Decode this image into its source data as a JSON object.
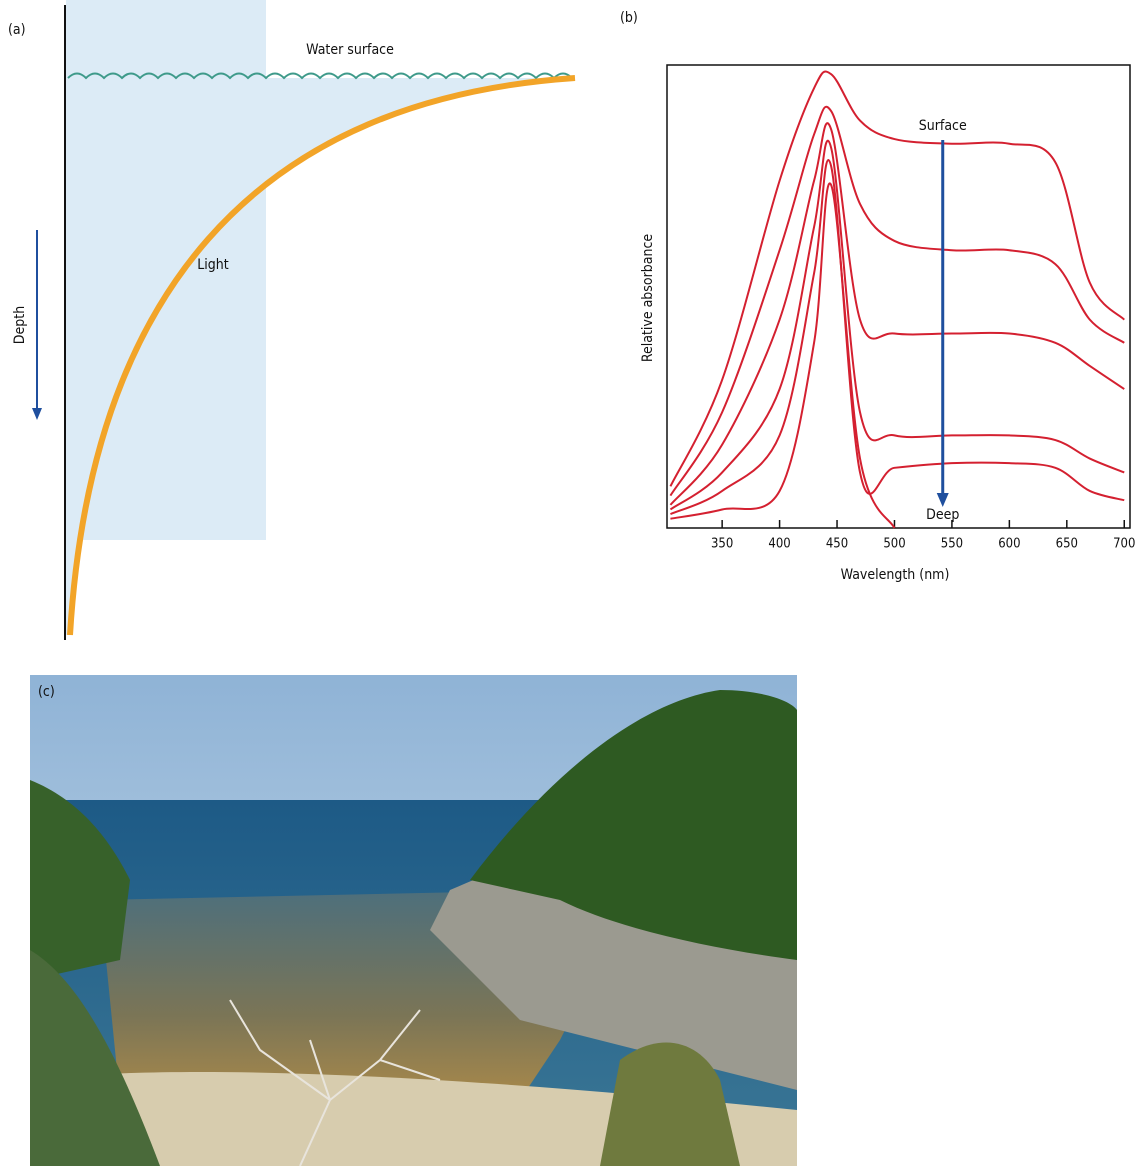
{
  "panel_a": {
    "label": "(a)",
    "water_surface": "Water surface",
    "light": "Light",
    "depth": "Depth"
  },
  "chart_data": {
    "type": "line",
    "label": "(b)",
    "x_label": "Wavelength (nm)",
    "y_label": "Relative absorbance",
    "annotations": [
      "Surface",
      "Deep"
    ],
    "x": [
      305,
      350,
      400,
      430,
      445,
      470,
      500,
      550,
      600,
      640,
      670,
      700
    ],
    "xlim": [
      302,
      705
    ],
    "xticks": [
      350,
      400,
      450,
      500,
      550,
      600,
      650,
      700
    ],
    "ylim": [
      0,
      1
    ],
    "series": [
      {
        "color": "#d42030",
        "values": [
          0.09,
          0.32,
          0.75,
          0.95,
          0.98,
          0.88,
          0.84,
          0.83,
          0.83,
          0.79,
          0.53,
          0.45
        ]
      },
      {
        "color": "#d42030",
        "values": [
          0.07,
          0.25,
          0.6,
          0.85,
          0.9,
          0.7,
          0.62,
          0.6,
          0.6,
          0.57,
          0.45,
          0.4
        ]
      },
      {
        "color": "#d42030",
        "values": [
          0.05,
          0.18,
          0.45,
          0.75,
          0.86,
          0.45,
          0.42,
          0.42,
          0.42,
          0.4,
          0.35,
          0.3
        ]
      },
      {
        "color": "#d42030",
        "values": [
          0.04,
          0.12,
          0.3,
          0.65,
          0.82,
          0.25,
          0.2,
          0.2,
          0.2,
          0.19,
          0.15,
          0.12
        ]
      },
      {
        "color": "#d42030",
        "values": [
          0.03,
          0.08,
          0.2,
          0.55,
          0.78,
          0.12,
          0.13,
          0.14,
          0.14,
          0.13,
          0.08,
          0.06
        ]
      },
      {
        "color": "#d42030",
        "values": [
          0.02,
          0.04,
          0.08,
          0.4,
          0.74,
          0.15,
          0.0,
          null,
          null,
          null,
          null,
          null
        ]
      }
    ]
  },
  "panel_c": {
    "label": "(c)"
  }
}
